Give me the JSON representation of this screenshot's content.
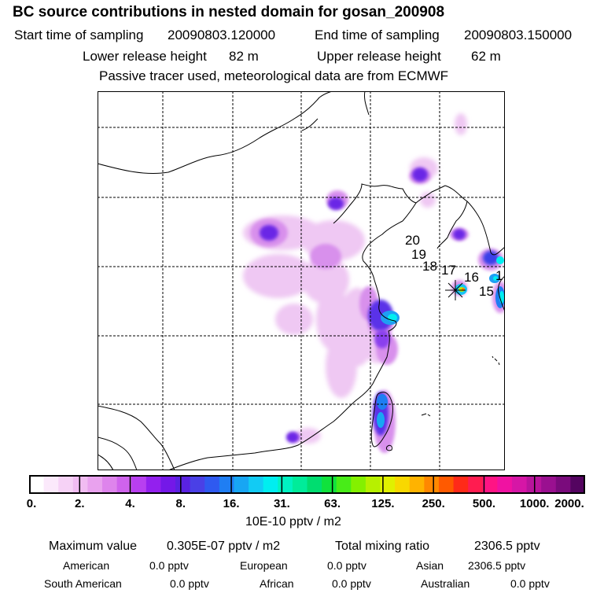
{
  "header": {
    "title": "BC  source contributions in nested domain for gosan_200908",
    "start_label": "Start time of sampling",
    "start_value": "20090803.120000",
    "end_label": "End time of sampling",
    "end_value": "20090803.150000",
    "lower_label": "Lower release height",
    "lower_value": "82 m",
    "upper_label": "Upper release height",
    "upper_value": "62 m",
    "note": "Passive tracer used, meteorological data are from ECMWF"
  },
  "map": {
    "trajectory_labels": [
      "20",
      "19",
      "18",
      "17",
      "16",
      "15",
      "1"
    ]
  },
  "colorbar": {
    "tick_labels": [
      "0.",
      "2.",
      "4.",
      "8.",
      "16.",
      "31.",
      "63.",
      "125.",
      "250.",
      "500.",
      "1000.",
      "2000."
    ],
    "colors": [
      "#ffffff",
      "#fbe9fb",
      "#f6d2f6",
      "#f1bcf2",
      "#e9a2ee",
      "#de84ec",
      "#cf63ec",
      "#b83ff0",
      "#9320ee",
      "#7418e8",
      "#5a22e2",
      "#4a40e6",
      "#2f5af0",
      "#1f7ef3",
      "#18a6f3",
      "#12cbf4",
      "#00eef0",
      "#00f2c2",
      "#00ec9a",
      "#00dd70",
      "#10e23c",
      "#48ec18",
      "#84f000",
      "#b7f000",
      "#e0f000",
      "#f8d800",
      "#ffb300",
      "#ff8800",
      "#ff5a00",
      "#ff2a18",
      "#ff1c50",
      "#ff1484",
      "#f012a2",
      "#d616a6",
      "#b8149c",
      "#9a1090",
      "#7a0b7c",
      "#540460"
    ],
    "units": "10E-10 pptv / m2"
  },
  "summary": {
    "max_label": "Maximum value",
    "max_value": "0.305E-07 pptv / m2",
    "total_label": "Total mixing ratio",
    "total_value": "2306.5 pptv",
    "rows": [
      [
        {
          "label": "American",
          "value": "0.0 pptv"
        },
        {
          "label": "European",
          "value": "0.0 pptv"
        },
        {
          "label": "Asian",
          "value": "2306.5 pptv"
        }
      ],
      [
        {
          "label": "South American",
          "value": "0.0 pptv"
        },
        {
          "label": "African",
          "value": "0.0 pptv"
        },
        {
          "label": "Australian",
          "value": "0.0 pptv"
        }
      ]
    ]
  }
}
